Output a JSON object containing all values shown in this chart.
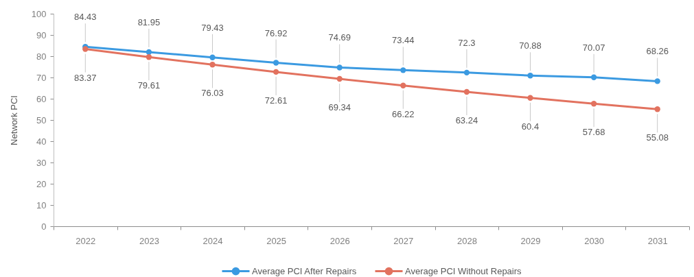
{
  "chart_data": {
    "type": "line",
    "ylabel": "Network PCI",
    "categories": [
      "2022",
      "2023",
      "2024",
      "2025",
      "2026",
      "2027",
      "2028",
      "2029",
      "2030",
      "2031"
    ],
    "series": [
      {
        "name": "Average PCI After Repairs",
        "color": "#3b9ae1",
        "values": [
          84.43,
          81.95,
          79.43,
          76.92,
          74.69,
          73.44,
          72.3,
          70.88,
          70.07,
          68.26
        ]
      },
      {
        "name": "Average PCI Without Repairs",
        "color": "#e2725f",
        "values": [
          83.37,
          79.61,
          76.03,
          72.61,
          69.34,
          66.22,
          63.24,
          60.4,
          57.68,
          55.08
        ]
      }
    ],
    "ylim": [
      0,
      100
    ],
    "yticks": [
      0,
      10,
      20,
      30,
      40,
      50,
      60,
      70,
      80,
      90,
      100
    ],
    "data_labels": true,
    "legend": "bottom",
    "marker": "circle",
    "line_style": "solid"
  }
}
